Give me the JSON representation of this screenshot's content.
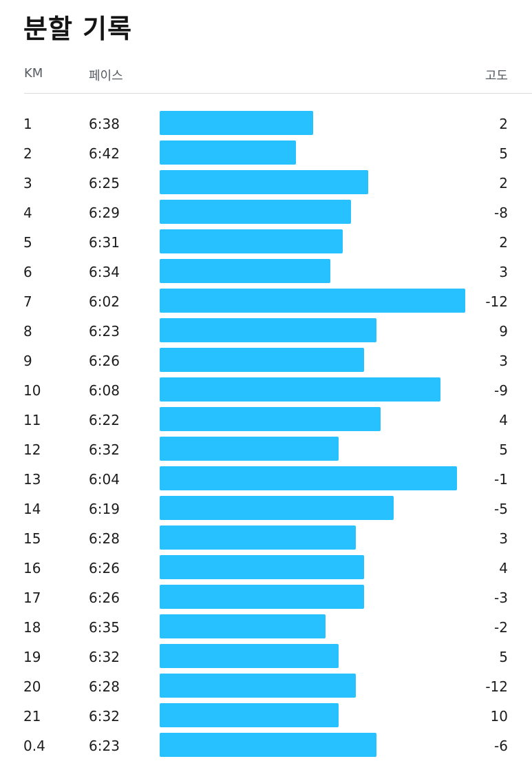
{
  "title": "분할 기록",
  "columns": {
    "km": "KM",
    "pace": "페이스",
    "elevation": "고도"
  },
  "colors": {
    "bar": "#27c1ff",
    "divider": "#d9dadc",
    "header_text": "#555a60"
  },
  "splits": [
    {
      "km": "1",
      "pace": "6:38",
      "elevation": "2"
    },
    {
      "km": "2",
      "pace": "6:42",
      "elevation": "5"
    },
    {
      "km": "3",
      "pace": "6:25",
      "elevation": "2"
    },
    {
      "km": "4",
      "pace": "6:29",
      "elevation": "-8"
    },
    {
      "km": "5",
      "pace": "6:31",
      "elevation": "2"
    },
    {
      "km": "6",
      "pace": "6:34",
      "elevation": "3"
    },
    {
      "km": "7",
      "pace": "6:02",
      "elevation": "-12"
    },
    {
      "km": "8",
      "pace": "6:23",
      "elevation": "9"
    },
    {
      "km": "9",
      "pace": "6:26",
      "elevation": "3"
    },
    {
      "km": "10",
      "pace": "6:08",
      "elevation": "-9"
    },
    {
      "km": "11",
      "pace": "6:22",
      "elevation": "4"
    },
    {
      "km": "12",
      "pace": "6:32",
      "elevation": "5"
    },
    {
      "km": "13",
      "pace": "6:04",
      "elevation": "-1"
    },
    {
      "km": "14",
      "pace": "6:19",
      "elevation": "-5"
    },
    {
      "km": "15",
      "pace": "6:28",
      "elevation": "3"
    },
    {
      "km": "16",
      "pace": "6:26",
      "elevation": "4"
    },
    {
      "km": "17",
      "pace": "6:26",
      "elevation": "-3"
    },
    {
      "km": "18",
      "pace": "6:35",
      "elevation": "-2"
    },
    {
      "km": "19",
      "pace": "6:32",
      "elevation": "5"
    },
    {
      "km": "20",
      "pace": "6:28",
      "elevation": "-12"
    },
    {
      "km": "21",
      "pace": "6:32",
      "elevation": "10"
    },
    {
      "km": "0.4",
      "pace": "6:23",
      "elevation": "-6"
    }
  ]
}
